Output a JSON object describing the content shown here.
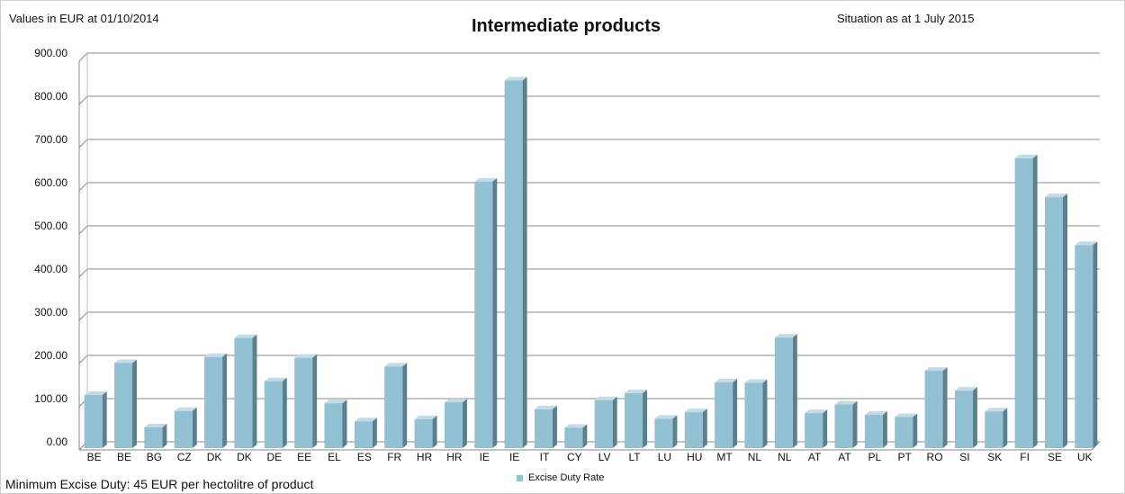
{
  "header": {
    "left_note": "Values in EUR at 01/10/2014",
    "title": "Intermediate products",
    "right_note": "Situation as at 1 July 2015"
  },
  "footer": {
    "note": "Minimum Excise Duty: 45 EUR per hectolitre of product"
  },
  "colors": {
    "bar_front": "#93c1d4",
    "bar_side": "#5b7f8c",
    "bar_top": "#c2dbe6"
  },
  "chart_data": {
    "type": "bar",
    "title": "Intermediate products",
    "xlabel": "",
    "ylabel": "",
    "ylim": [
      0,
      900
    ],
    "yticks": [
      "0.00",
      "100.00",
      "200.00",
      "300.00",
      "400.00",
      "500.00",
      "600.00",
      "700.00",
      "800.00",
      "900.00"
    ],
    "grid": true,
    "legend_position": "bottom",
    "categories": [
      "BE",
      "BE",
      "BG",
      "CZ",
      "DK",
      "DK",
      "DE",
      "EE",
      "EL",
      "ES",
      "FR",
      "HR",
      "HR",
      "IE",
      "IE",
      "IT",
      "CY",
      "LV",
      "LT",
      "LU",
      "HU",
      "MT",
      "NL",
      "NL",
      "AT",
      "AT",
      "PL",
      "PT",
      "RO",
      "SI",
      "SK",
      "FI",
      "SE",
      "UK"
    ],
    "series": [
      {
        "name": "Excise Duty Rate",
        "values": [
          123,
          197,
          48,
          86,
          211,
          255,
          155,
          209,
          104,
          62,
          189,
          67,
          106,
          617,
          851,
          90,
          47,
          111,
          127,
          68,
          83,
          152,
          151,
          256,
          81,
          101,
          77,
          72,
          179,
          133,
          85,
          671,
          581,
          470
        ]
      }
    ]
  }
}
